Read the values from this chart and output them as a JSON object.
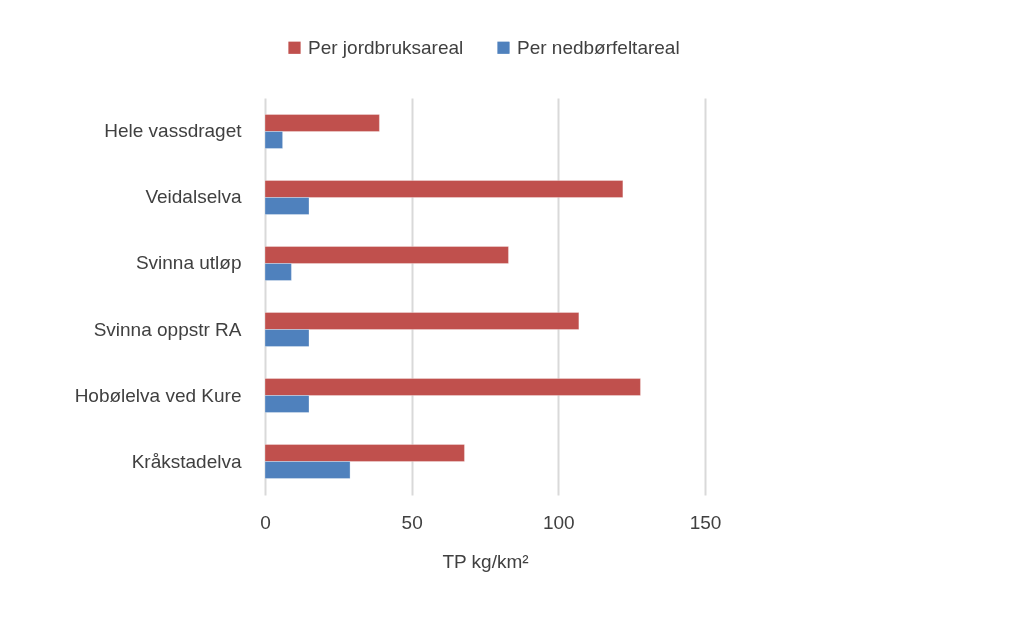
{
  "chart_data": {
    "type": "bar",
    "orientation": "horizontal",
    "categories": [
      "Hele vassdraget",
      "Veidalselva",
      "Svinna utløp",
      "Svinna oppstr RA",
      "Hobølelva ved Kure",
      "Kråkstadelva"
    ],
    "series": [
      {
        "name": "Per jordbruksareal",
        "color": "#c0504d",
        "values": [
          39,
          122,
          83,
          107,
          128,
          68
        ]
      },
      {
        "name": "Per nedbørfeltareal",
        "color": "#4f81bd",
        "values": [
          6,
          15,
          9,
          15,
          15,
          29
        ]
      }
    ],
    "xlabel": "TP kg/km²",
    "xlim": [
      0,
      150
    ],
    "xticks": [
      0,
      50,
      100,
      150
    ],
    "grid": "x",
    "legend": "top"
  }
}
